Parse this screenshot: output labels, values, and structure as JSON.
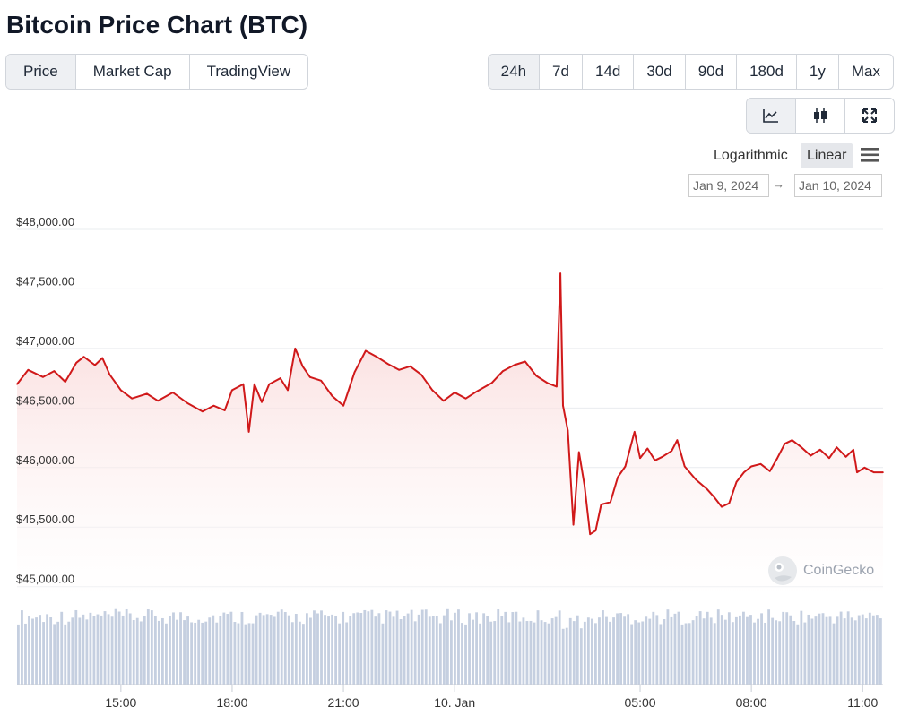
{
  "page": {
    "title": "Bitcoin Price Chart (BTC)"
  },
  "view_tabs": [
    {
      "label": "Price",
      "active": true
    },
    {
      "label": "Market Cap",
      "active": false
    },
    {
      "label": "TradingView",
      "active": false
    }
  ],
  "ranges": [
    {
      "label": "24h",
      "active": true
    },
    {
      "label": "7d",
      "active": false
    },
    {
      "label": "14d",
      "active": false
    },
    {
      "label": "30d",
      "active": false
    },
    {
      "label": "90d",
      "active": false
    },
    {
      "label": "180d",
      "active": false
    },
    {
      "label": "1y",
      "active": false
    },
    {
      "label": "Max",
      "active": false
    }
  ],
  "chart_type_buttons": [
    {
      "icon": "line-chart-icon",
      "active": true
    },
    {
      "icon": "candlestick-icon",
      "active": false
    },
    {
      "icon": "fullscreen-icon",
      "active": false
    }
  ],
  "scale": {
    "logarithmic": "Logarithmic",
    "linear": "Linear",
    "selected": "Linear"
  },
  "date_range": {
    "from": "Jan 9, 2024",
    "arrow": "→",
    "to": "Jan 10, 2024"
  },
  "watermark": {
    "text": "CoinGecko",
    "icon": "coingecko-logo"
  },
  "colors": {
    "line": "#d0191a",
    "area_top": "#fbd9d9",
    "volume": "#c5cfe0",
    "grid": "#e9ecef",
    "active_bg": "#eef0f3"
  },
  "chart_data": {
    "type": "area",
    "title": "",
    "xlabel": "",
    "ylabel": "",
    "ylim": [
      44900,
      48150
    ],
    "y_ticks": [
      {
        "value": 48000,
        "label": "$48,000.00"
      },
      {
        "value": 47500,
        "label": "$47,500.00"
      },
      {
        "value": 47000,
        "label": "$47,000.00"
      },
      {
        "value": 46500,
        "label": "$46,500.00"
      },
      {
        "value": 46000,
        "label": "$46,000.00"
      },
      {
        "value": 45500,
        "label": "$45,500.00"
      },
      {
        "value": 45000,
        "label": "$45,000.00"
      }
    ],
    "x_range_hours": [
      12.2,
      35.55
    ],
    "x_ticks": [
      {
        "hour": 15,
        "label": "15:00"
      },
      {
        "hour": 18,
        "label": "18:00"
      },
      {
        "hour": 21,
        "label": "21:00"
      },
      {
        "hour": 24,
        "label": "10. Jan"
      },
      {
        "hour": 29,
        "label": "05:00"
      },
      {
        "hour": 32,
        "label": "08:00"
      },
      {
        "hour": 35,
        "label": "11:00"
      }
    ],
    "grid": true,
    "legend": "none",
    "series": [
      {
        "points": [
          [
            12.2,
            46700
          ],
          [
            12.5,
            46820
          ],
          [
            12.9,
            46760
          ],
          [
            13.2,
            46810
          ],
          [
            13.5,
            46720
          ],
          [
            13.8,
            46880
          ],
          [
            14.0,
            46930
          ],
          [
            14.3,
            46860
          ],
          [
            14.5,
            46920
          ],
          [
            14.7,
            46780
          ],
          [
            15.0,
            46650
          ],
          [
            15.3,
            46580
          ],
          [
            15.7,
            46620
          ],
          [
            16.0,
            46560
          ],
          [
            16.4,
            46630
          ],
          [
            16.8,
            46540
          ],
          [
            17.2,
            46470
          ],
          [
            17.5,
            46520
          ],
          [
            17.8,
            46480
          ],
          [
            18.0,
            46650
          ],
          [
            18.3,
            46700
          ],
          [
            18.45,
            46300
          ],
          [
            18.6,
            46700
          ],
          [
            18.8,
            46550
          ],
          [
            19.0,
            46700
          ],
          [
            19.3,
            46750
          ],
          [
            19.5,
            46650
          ],
          [
            19.7,
            47000
          ],
          [
            19.9,
            46850
          ],
          [
            20.1,
            46760
          ],
          [
            20.4,
            46730
          ],
          [
            20.7,
            46600
          ],
          [
            21.0,
            46520
          ],
          [
            21.3,
            46800
          ],
          [
            21.6,
            46980
          ],
          [
            21.9,
            46930
          ],
          [
            22.2,
            46870
          ],
          [
            22.5,
            46820
          ],
          [
            22.8,
            46850
          ],
          [
            23.1,
            46780
          ],
          [
            23.4,
            46650
          ],
          [
            23.7,
            46560
          ],
          [
            24.0,
            46630
          ],
          [
            24.3,
            46580
          ],
          [
            24.6,
            46640
          ],
          [
            25.0,
            46710
          ],
          [
            25.3,
            46810
          ],
          [
            25.6,
            46860
          ],
          [
            25.9,
            46890
          ],
          [
            26.2,
            46770
          ],
          [
            26.5,
            46710
          ],
          [
            26.75,
            46680
          ],
          [
            26.85,
            47630
          ],
          [
            26.92,
            46520
          ],
          [
            27.05,
            46310
          ],
          [
            27.2,
            45520
          ],
          [
            27.35,
            46130
          ],
          [
            27.5,
            45850
          ],
          [
            27.65,
            45440
          ],
          [
            27.8,
            45470
          ],
          [
            27.95,
            45690
          ],
          [
            28.2,
            45710
          ],
          [
            28.4,
            45920
          ],
          [
            28.6,
            46010
          ],
          [
            28.85,
            46300
          ],
          [
            29.0,
            46080
          ],
          [
            29.2,
            46160
          ],
          [
            29.4,
            46060
          ],
          [
            29.6,
            46090
          ],
          [
            29.85,
            46140
          ],
          [
            30.0,
            46230
          ],
          [
            30.2,
            46010
          ],
          [
            30.5,
            45900
          ],
          [
            30.8,
            45820
          ],
          [
            31.0,
            45750
          ],
          [
            31.2,
            45670
          ],
          [
            31.4,
            45700
          ],
          [
            31.6,
            45880
          ],
          [
            31.8,
            45960
          ],
          [
            32.0,
            46010
          ],
          [
            32.25,
            46030
          ],
          [
            32.5,
            45970
          ],
          [
            32.7,
            46080
          ],
          [
            32.9,
            46200
          ],
          [
            33.1,
            46230
          ],
          [
            33.35,
            46170
          ],
          [
            33.6,
            46100
          ],
          [
            33.85,
            46150
          ],
          [
            34.1,
            46080
          ],
          [
            34.3,
            46170
          ],
          [
            34.55,
            46090
          ],
          [
            34.75,
            46150
          ],
          [
            34.85,
            45960
          ],
          [
            35.05,
            46000
          ],
          [
            35.3,
            45960
          ],
          [
            35.55,
            45960
          ]
        ]
      }
    ]
  }
}
